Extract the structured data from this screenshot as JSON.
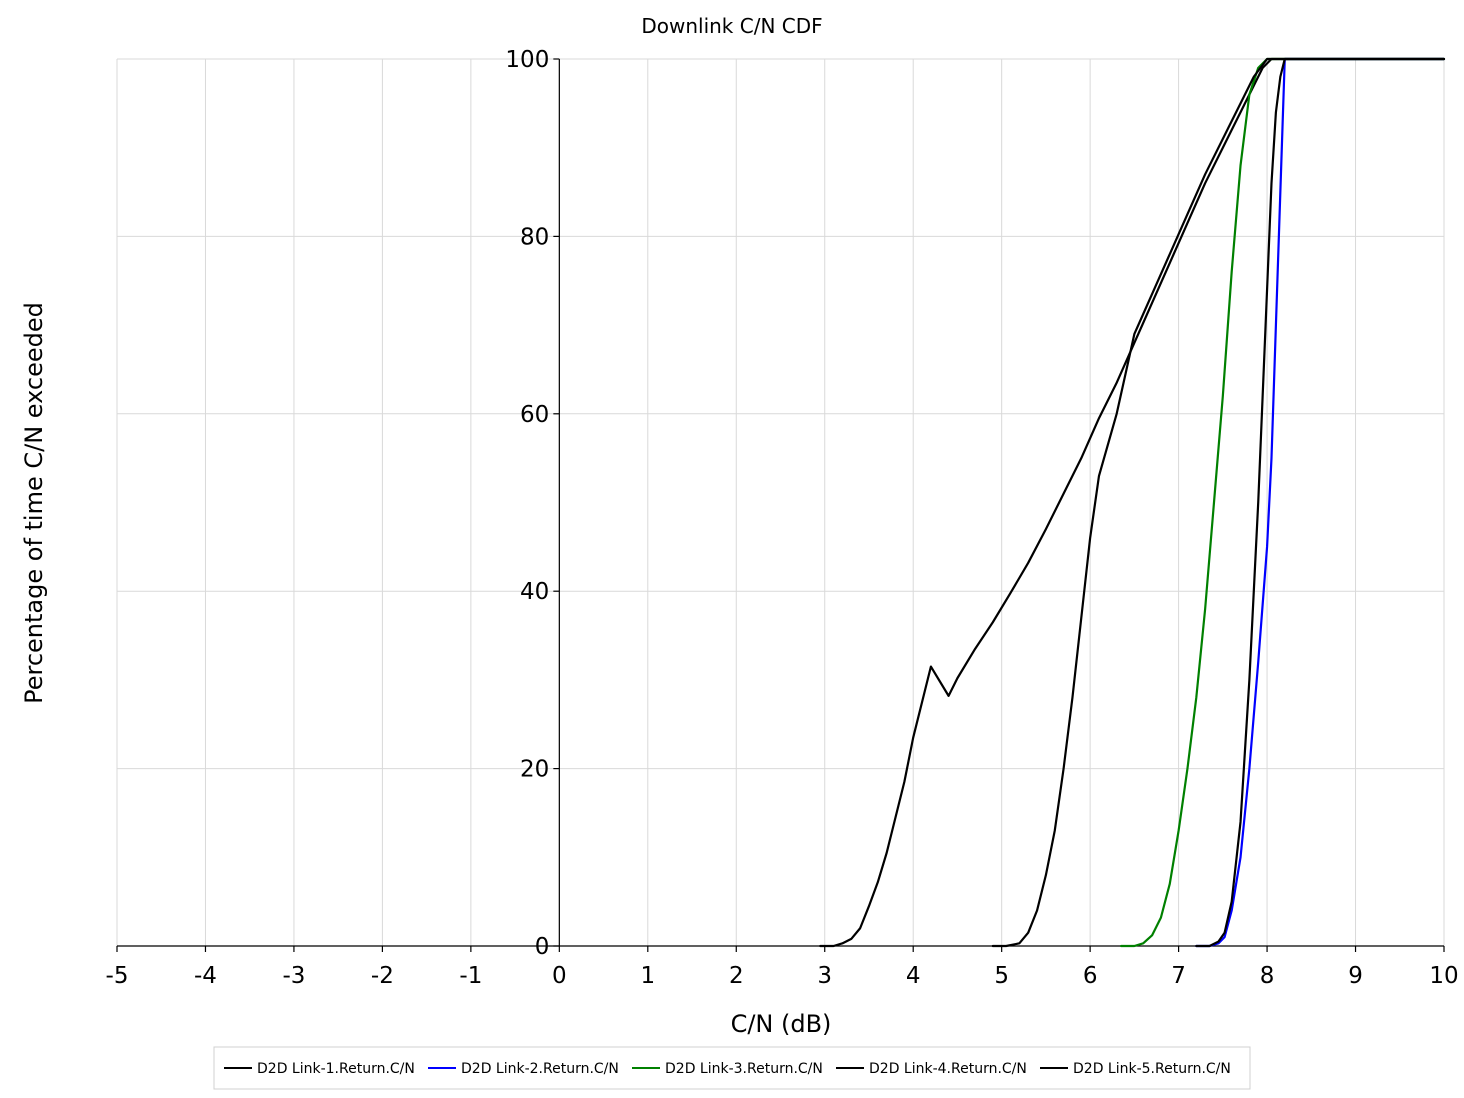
{
  "chart_data": {
    "type": "line",
    "title": "Downlink C/N CDF",
    "xlabel": "C/N (dB)",
    "ylabel": "Percentage of time C/N exceeded",
    "xlim": [
      -5,
      10
    ],
    "ylim": [
      0,
      100
    ],
    "x_ticks": [
      -5,
      -4,
      -3,
      -2,
      -1,
      0,
      1,
      2,
      3,
      4,
      5,
      6,
      7,
      8,
      9,
      10
    ],
    "y_ticks": [
      0,
      20,
      40,
      60,
      80,
      100
    ],
    "grid": true,
    "legend_position": "bottom",
    "series": [
      {
        "name": "D2D Link-1.Return.C/N",
        "color": "#000000",
        "points": [
          [
            2.95,
            0
          ],
          [
            3.1,
            0
          ],
          [
            3.2,
            0.3
          ],
          [
            3.3,
            0.8
          ],
          [
            3.4,
            2
          ],
          [
            3.5,
            4.5
          ],
          [
            3.6,
            7.2
          ],
          [
            3.7,
            10.5
          ],
          [
            3.8,
            14.5
          ],
          [
            3.9,
            18.5
          ],
          [
            4.0,
            23.5
          ],
          [
            4.1,
            27.5
          ],
          [
            4.2,
            31.5
          ],
          [
            4.4,
            28.2
          ],
          [
            4.5,
            30.2
          ],
          [
            4.7,
            33.5
          ],
          [
            4.9,
            36.5
          ],
          [
            5.1,
            39.8
          ],
          [
            5.3,
            43.2
          ],
          [
            5.5,
            47
          ],
          [
            5.7,
            51
          ],
          [
            5.9,
            55
          ],
          [
            6.1,
            59.5
          ],
          [
            6.3,
            63.5
          ],
          [
            6.5,
            68
          ],
          [
            6.7,
            72.5
          ],
          [
            6.9,
            77
          ],
          [
            7.1,
            81.5
          ],
          [
            7.3,
            86
          ],
          [
            7.5,
            90
          ],
          [
            7.7,
            94
          ],
          [
            7.85,
            97
          ],
          [
            7.95,
            99
          ],
          [
            8.05,
            100
          ],
          [
            10,
            100
          ]
        ]
      },
      {
        "name": "D2D Link-2.Return.C/N",
        "color": "#0000ff",
        "points": [
          [
            7.2,
            0
          ],
          [
            7.35,
            0
          ],
          [
            7.45,
            0.3
          ],
          [
            7.52,
            1
          ],
          [
            7.6,
            4
          ],
          [
            7.7,
            10
          ],
          [
            7.8,
            20
          ],
          [
            7.9,
            32
          ],
          [
            8.0,
            45
          ],
          [
            8.05,
            55
          ],
          [
            8.1,
            70
          ],
          [
            8.15,
            85
          ],
          [
            8.2,
            100
          ],
          [
            10,
            100
          ]
        ]
      },
      {
        "name": "D2D Link-3.Return.C/N",
        "color": "#008000",
        "points": [
          [
            6.35,
            0
          ],
          [
            6.5,
            0
          ],
          [
            6.6,
            0.3
          ],
          [
            6.7,
            1.2
          ],
          [
            6.8,
            3.2
          ],
          [
            6.9,
            7
          ],
          [
            7.0,
            13
          ],
          [
            7.1,
            20
          ],
          [
            7.2,
            28
          ],
          [
            7.3,
            38
          ],
          [
            7.4,
            50
          ],
          [
            7.5,
            62
          ],
          [
            7.6,
            76
          ],
          [
            7.7,
            88
          ],
          [
            7.8,
            96
          ],
          [
            7.9,
            99
          ],
          [
            8.0,
            100
          ],
          [
            10,
            100
          ]
        ]
      },
      {
        "name": "D2D Link-4.Return.C/N",
        "color": "#000000",
        "points": [
          [
            4.9,
            0
          ],
          [
            5.05,
            0
          ],
          [
            5.2,
            0.3
          ],
          [
            5.3,
            1.5
          ],
          [
            5.4,
            4
          ],
          [
            5.5,
            8
          ],
          [
            5.6,
            13
          ],
          [
            5.7,
            20
          ],
          [
            5.8,
            28
          ],
          [
            5.9,
            37
          ],
          [
            6.0,
            46
          ],
          [
            6.1,
            53
          ],
          [
            6.3,
            60
          ],
          [
            6.4,
            64.5
          ],
          [
            6.5,
            69
          ],
          [
            6.7,
            73.5
          ],
          [
            6.9,
            78
          ],
          [
            7.1,
            82.5
          ],
          [
            7.3,
            87
          ],
          [
            7.5,
            91
          ],
          [
            7.7,
            95
          ],
          [
            7.85,
            98
          ],
          [
            8.0,
            100
          ],
          [
            10,
            100
          ]
        ]
      },
      {
        "name": "D2D Link-5.Return.C/N",
        "color": "#000000",
        "points": [
          [
            7.2,
            0
          ],
          [
            7.35,
            0
          ],
          [
            7.45,
            0.5
          ],
          [
            7.52,
            1.5
          ],
          [
            7.6,
            5
          ],
          [
            7.7,
            14
          ],
          [
            7.8,
            30
          ],
          [
            7.9,
            50
          ],
          [
            7.95,
            62
          ],
          [
            8.0,
            74
          ],
          [
            8.05,
            86
          ],
          [
            8.1,
            94
          ],
          [
            8.15,
            98
          ],
          [
            8.2,
            100
          ],
          [
            10,
            100
          ]
        ]
      }
    ]
  }
}
